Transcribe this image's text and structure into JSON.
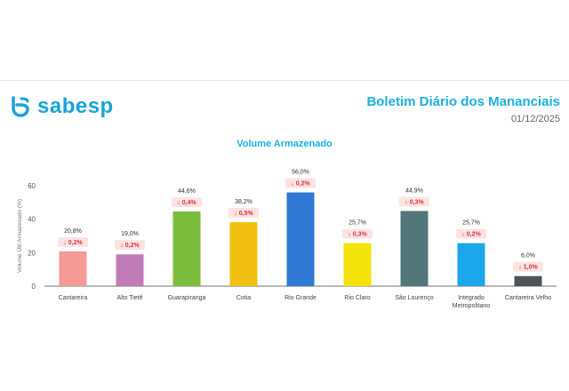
{
  "header": {
    "brand": "sabesp",
    "title": "Boletim Diário dos Mananciais",
    "date": "01/12/2025"
  },
  "colors": {
    "brand": "#1aa3d9",
    "decrease": "#d23a3a",
    "badge_bg": "#fde3e3"
  },
  "chart_data": {
    "type": "bar",
    "title": "Volume Armazenado",
    "xlabel": "",
    "ylabel": "Volume Útil Armazenado (%)",
    "ylim": [
      0,
      60
    ],
    "yticks": [
      "0",
      "20",
      "40",
      "60"
    ],
    "categories": [
      "Cantareira",
      "Alto Tietê",
      "Guarapiranga",
      "Cotia",
      "Rio Grande",
      "Rio Claro",
      "São Lourenço",
      "Integrado Metropolitano",
      "Cantareira Velho"
    ],
    "category_lines": [
      [
        "Cantareira"
      ],
      [
        "Alto Tietê"
      ],
      [
        "Guarapiranga"
      ],
      [
        "Cotia"
      ],
      [
        "Rio Grande"
      ],
      [
        "Rio Claro"
      ],
      [
        "São Lourenço"
      ],
      [
        "Integrado",
        "Metropolitano"
      ],
      [
        "Cantareira Velho"
      ]
    ],
    "values": [
      20.8,
      19.0,
      44.6,
      38.2,
      56.0,
      25.7,
      44.9,
      25.7,
      6.0
    ],
    "value_labels": [
      "20,8%",
      "19,0%",
      "44,6%",
      "38,2%",
      "56,0%",
      "25,7%",
      "44,9%",
      "25,7%",
      "6,0%"
    ],
    "changes": [
      "0,2%",
      "0,2%",
      "0,4%",
      "0,5%",
      "0,2%",
      "0,3%",
      "0,3%",
      "0,2%",
      "1,0%"
    ],
    "change_arrow": "↓",
    "bar_colors": [
      "#f49a97",
      "#c07cb8",
      "#7cbd3e",
      "#f2c010",
      "#2f78d4",
      "#f3e30a",
      "#52777a",
      "#1ca7ec",
      "#4d5459"
    ],
    "grid": false
  }
}
